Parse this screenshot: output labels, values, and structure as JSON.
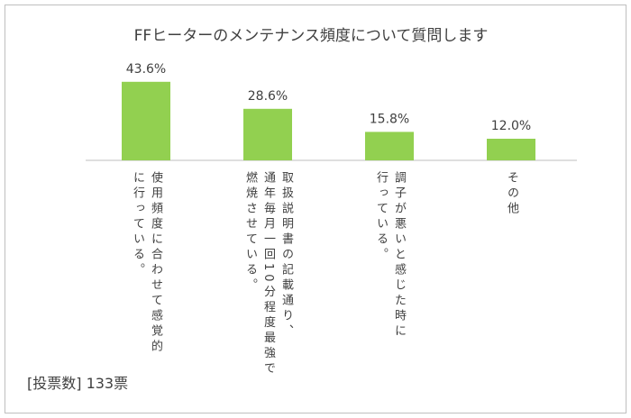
{
  "chart_data": {
    "type": "bar",
    "title": "FFヒーターのメンテナンス頻度について質問します",
    "categories": [
      "使用頻度に合わせて感覚的\nに行っている。",
      "取扱説明書の記載通り、\n通年毎月一回10分程度最強で\n燃焼させている。",
      "調子が悪いと感じた時に\n行っている。",
      "その他"
    ],
    "values": [
      43.6,
      28.6,
      15.8,
      12.0
    ],
    "value_labels": [
      "43.6%",
      "28.6%",
      "15.8%",
      "12.0%"
    ],
    "color": "#92d050",
    "note": "[投票数]  133票"
  }
}
